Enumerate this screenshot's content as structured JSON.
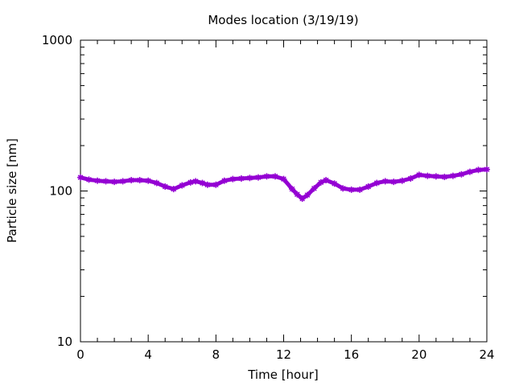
{
  "chart_data": {
    "type": "line",
    "title": "Modes location (3/19/19)",
    "xlabel": "Time [hour]",
    "ylabel": "Particle size [nm]",
    "xlim": [
      0,
      24
    ],
    "ylim": [
      10,
      1000
    ],
    "yscale": "log",
    "grid": false,
    "legend": "none",
    "x_ticks": [
      "0",
      "4",
      "8",
      "12",
      "16",
      "20",
      "24"
    ],
    "y_ticks": [
      "10",
      "100",
      "1000"
    ],
    "series": [
      {
        "color": "#9400d3",
        "marker": "star",
        "x": [
          0,
          0.5,
          1,
          1.5,
          2,
          2.5,
          3,
          3.5,
          4,
          4.5,
          5,
          5.5,
          6,
          6.5,
          6.8,
          7.2,
          7.5,
          8,
          8.5,
          9,
          9.5,
          10,
          10.5,
          11,
          11.5,
          12,
          12.5,
          12.8,
          13.1,
          13.4,
          13.8,
          14.2,
          14.5,
          15,
          15.5,
          16,
          16.5,
          17,
          17.5,
          18,
          18.5,
          19,
          19.5,
          20,
          20.5,
          21,
          21.5,
          22,
          22.5,
          23,
          23.5,
          24
        ],
        "y": [
          123,
          119,
          117,
          116,
          115,
          116,
          118,
          118,
          117,
          113,
          107,
          103,
          109,
          114,
          116,
          113,
          110,
          110,
          117,
          120,
          121,
          122,
          123,
          125,
          125,
          120,
          103,
          95,
          89,
          94,
          104,
          114,
          118,
          112,
          104,
          102,
          102,
          107,
          113,
          116,
          115,
          117,
          121,
          128,
          126,
          125,
          124,
          126,
          129,
          134,
          138,
          139
        ]
      }
    ]
  }
}
